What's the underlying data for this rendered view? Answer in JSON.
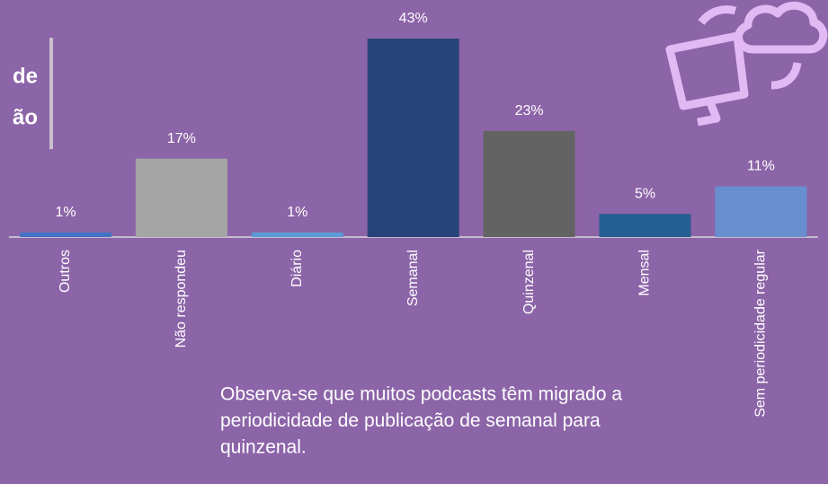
{
  "chart_data": {
    "type": "bar",
    "categories": [
      "Outros",
      "Não respondeu",
      "Diário",
      "Semanal",
      "Quinzenal",
      "Mensal",
      "Sem periodicidade regular"
    ],
    "values": [
      1,
      17,
      1,
      43,
      23,
      5,
      11
    ],
    "value_labels": [
      "1%",
      "17%",
      "1%",
      "43%",
      "23%",
      "5%",
      "11%"
    ],
    "colors": [
      "#4472c4",
      "#a5a5a5",
      "#5b9bd5",
      "#264478",
      "#636363",
      "#255e91",
      "#698ed0"
    ],
    "title_fragments": [
      "de",
      "ão"
    ],
    "note": [
      "Observa-se que muitos podcasts têm migrado a",
      "periodicidade de publicação de semanal para",
      "quinzenal."
    ]
  }
}
